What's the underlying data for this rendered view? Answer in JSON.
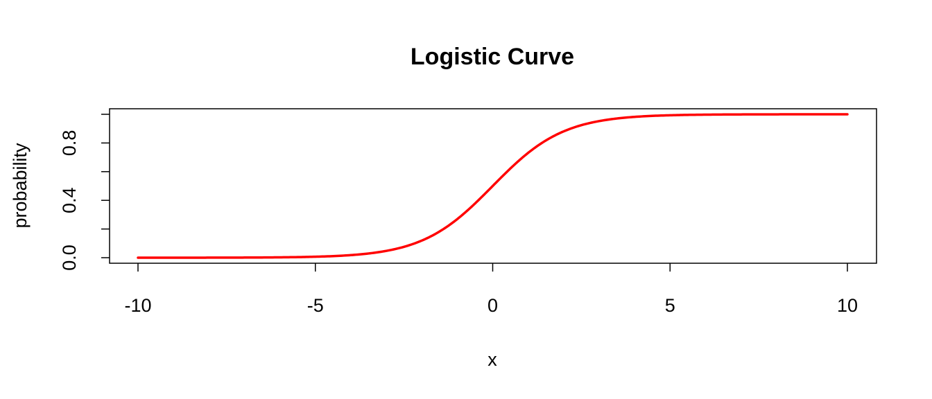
{
  "chart_data": {
    "type": "line",
    "title": "Logistic Curve",
    "xlabel": "x",
    "ylabel": "probability",
    "xlim": [
      -10,
      10
    ],
    "ylim": [
      0,
      1
    ],
    "x_ticks": [
      -10,
      -5,
      0,
      5,
      10
    ],
    "y_ticks": [
      0.0,
      0.2,
      0.4,
      0.6,
      0.8,
      1.0
    ],
    "y_tick_labels": [
      "0.0",
      "",
      "0.4",
      "",
      "0.8",
      ""
    ],
    "grid": false,
    "legend": "none",
    "series": [
      {
        "color": "#ff0000",
        "x": [
          -10,
          -9,
          -8,
          -7,
          -6,
          -5,
          -4,
          -3.5,
          -3,
          -2.5,
          -2,
          -1.5,
          -1,
          -0.5,
          0,
          0.5,
          1,
          1.5,
          2,
          2.5,
          3,
          3.5,
          4,
          5,
          6,
          7,
          8,
          9,
          10
        ],
        "y": [
          4.54e-05,
          0.000123,
          0.000335,
          0.000911,
          0.00247,
          0.00669,
          0.018,
          0.0293,
          0.0474,
          0.0759,
          0.1192,
          0.1824,
          0.2689,
          0.3775,
          0.5,
          0.6225,
          0.7311,
          0.8176,
          0.8808,
          0.9241,
          0.9526,
          0.9707,
          0.982,
          0.99331,
          0.99753,
          0.99909,
          0.999665,
          0.999877,
          0.9999546
        ]
      }
    ]
  }
}
